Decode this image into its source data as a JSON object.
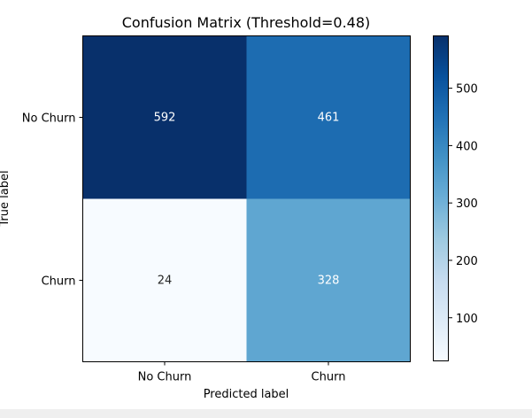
{
  "chart_data": {
    "type": "heatmap",
    "title": "Confusion Matrix (Threshold=0.48)",
    "xlabel": "Predicted label",
    "ylabel": "True label",
    "x_categories": [
      "No Churn",
      "Churn"
    ],
    "y_categories": [
      "No Churn",
      "Churn"
    ],
    "values": [
      [
        592,
        461
      ],
      [
        24,
        328
      ]
    ],
    "colormap": "Blues",
    "colorbar": {
      "range": [
        24,
        592
      ],
      "ticks": [
        100,
        200,
        300,
        400,
        500
      ],
      "tick_labels": [
        "100",
        "200",
        "300",
        "400",
        "500"
      ]
    },
    "text_color_dark": "#262626",
    "text_color_light": "#ffffff"
  }
}
